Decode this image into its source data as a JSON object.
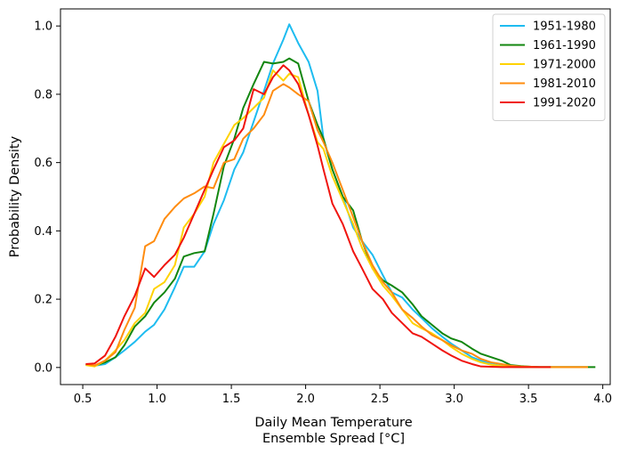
{
  "chart_data": {
    "type": "line",
    "title": "",
    "xlabel": [
      "Daily Mean Temperature",
      "Ensemble Spread [°C]"
    ],
    "ylabel": "Probability Density",
    "xlim": [
      0.35,
      4.05
    ],
    "ylim": [
      -0.05,
      1.05
    ],
    "xticks": [
      0.5,
      1.0,
      1.5,
      2.0,
      2.5,
      3.0,
      3.5,
      4.0
    ],
    "xtick_labels": [
      "0.5",
      "1.0",
      "1.5",
      "2.0",
      "2.5",
      "3.0",
      "3.5",
      "4.0"
    ],
    "yticks": [
      0.0,
      0.2,
      0.4,
      0.6,
      0.8,
      1.0
    ],
    "ytick_labels": [
      "0.0",
      "0.2",
      "0.4",
      "0.6",
      "0.8",
      "1.0"
    ],
    "grid": false,
    "legend_position": "top-right",
    "series": [
      {
        "name": "1951-1980",
        "color": "#1ebcf0",
        "x": [
          0.52,
          0.58,
          0.65,
          0.72,
          0.78,
          0.85,
          0.92,
          0.98,
          1.05,
          1.12,
          1.18,
          1.25,
          1.32,
          1.38,
          1.45,
          1.52,
          1.58,
          1.65,
          1.72,
          1.78,
          1.85,
          1.89,
          1.95,
          2.02,
          2.08,
          2.12,
          2.18,
          2.25,
          2.32,
          2.38,
          2.45,
          2.52,
          2.58,
          2.65,
          2.72,
          2.78,
          2.85,
          2.92,
          2.98,
          3.05,
          3.12,
          3.18,
          3.25,
          3.32,
          3.38,
          3.45,
          3.52,
          3.58,
          3.65,
          3.72,
          3.78,
          3.85,
          3.9
        ],
        "values": [
          0.01,
          0.005,
          0.01,
          0.03,
          0.05,
          0.075,
          0.105,
          0.125,
          0.17,
          0.235,
          0.295,
          0.295,
          0.34,
          0.42,
          0.49,
          0.58,
          0.63,
          0.72,
          0.81,
          0.89,
          0.96,
          1.005,
          0.95,
          0.895,
          0.81,
          0.67,
          0.58,
          0.5,
          0.41,
          0.37,
          0.33,
          0.27,
          0.22,
          0.205,
          0.17,
          0.145,
          0.115,
          0.09,
          0.07,
          0.05,
          0.03,
          0.02,
          0.01,
          0.005,
          0.002,
          0.001,
          0.001,
          0.001,
          0.001,
          0.001,
          0.001,
          0.001,
          0.001
        ]
      },
      {
        "name": "1961-1990",
        "color": "#12860f",
        "x": [
          0.52,
          0.58,
          0.65,
          0.72,
          0.78,
          0.85,
          0.92,
          0.98,
          1.05,
          1.12,
          1.18,
          1.25,
          1.32,
          1.38,
          1.45,
          1.52,
          1.58,
          1.65,
          1.72,
          1.78,
          1.85,
          1.89,
          1.95,
          2.02,
          2.08,
          2.12,
          2.18,
          2.25,
          2.32,
          2.38,
          2.45,
          2.52,
          2.58,
          2.65,
          2.72,
          2.78,
          2.85,
          2.92,
          2.98,
          3.05,
          3.12,
          3.18,
          3.25,
          3.32,
          3.38,
          3.45,
          3.52,
          3.58,
          3.65,
          3.72,
          3.78,
          3.85,
          3.95
        ],
        "values": [
          0.008,
          0.005,
          0.015,
          0.03,
          0.065,
          0.12,
          0.15,
          0.19,
          0.22,
          0.26,
          0.325,
          0.335,
          0.34,
          0.45,
          0.59,
          0.67,
          0.76,
          0.83,
          0.895,
          0.89,
          0.895,
          0.905,
          0.89,
          0.78,
          0.71,
          0.67,
          0.58,
          0.5,
          0.46,
          0.37,
          0.29,
          0.255,
          0.24,
          0.22,
          0.185,
          0.15,
          0.125,
          0.1,
          0.085,
          0.075,
          0.055,
          0.04,
          0.03,
          0.02,
          0.007,
          0.004,
          0.002,
          0.001,
          0.001,
          0.001,
          0.001,
          0.001,
          0.001
        ]
      },
      {
        "name": "1971-2000",
        "color": "#ffd200",
        "x": [
          0.52,
          0.58,
          0.65,
          0.72,
          0.78,
          0.85,
          0.92,
          0.98,
          1.05,
          1.12,
          1.18,
          1.25,
          1.32,
          1.38,
          1.45,
          1.52,
          1.58,
          1.65,
          1.72,
          1.78,
          1.85,
          1.89,
          1.95,
          2.02,
          2.08,
          2.12,
          2.18,
          2.25,
          2.32,
          2.38,
          2.45,
          2.52,
          2.58,
          2.65,
          2.72,
          2.78,
          2.85,
          2.92,
          2.98,
          3.05,
          3.12,
          3.18,
          3.25,
          3.32,
          3.38,
          3.45,
          3.52,
          3.58,
          3.65,
          3.72,
          3.78,
          3.85,
          3.9
        ],
        "values": [
          0.007,
          0.003,
          0.02,
          0.05,
          0.08,
          0.13,
          0.16,
          0.23,
          0.25,
          0.3,
          0.41,
          0.45,
          0.5,
          0.6,
          0.655,
          0.71,
          0.73,
          0.76,
          0.79,
          0.87,
          0.84,
          0.86,
          0.85,
          0.74,
          0.66,
          0.64,
          0.56,
          0.49,
          0.42,
          0.35,
          0.29,
          0.24,
          0.21,
          0.17,
          0.13,
          0.115,
          0.1,
          0.08,
          0.06,
          0.04,
          0.025,
          0.015,
          0.008,
          0.004,
          0.002,
          0.001,
          0.001,
          0.001,
          0.001,
          0.001,
          0.001,
          0.001,
          0.001
        ]
      },
      {
        "name": "1981-2010",
        "color": "#ff8c0f",
        "x": [
          0.52,
          0.58,
          0.65,
          0.72,
          0.78,
          0.85,
          0.92,
          0.98,
          1.05,
          1.12,
          1.18,
          1.25,
          1.32,
          1.38,
          1.45,
          1.52,
          1.58,
          1.65,
          1.72,
          1.78,
          1.85,
          1.89,
          1.95,
          2.02,
          2.08,
          2.12,
          2.18,
          2.25,
          2.32,
          2.38,
          2.45,
          2.52,
          2.58,
          2.65,
          2.72,
          2.78,
          2.85,
          2.92,
          2.98,
          3.05,
          3.12,
          3.18,
          3.25,
          3.32,
          3.38,
          3.45,
          3.52,
          3.58,
          3.65,
          3.72,
          3.78,
          3.85,
          3.9
        ],
        "values": [
          0.01,
          0.006,
          0.02,
          0.045,
          0.11,
          0.175,
          0.355,
          0.37,
          0.435,
          0.47,
          0.495,
          0.51,
          0.53,
          0.525,
          0.6,
          0.61,
          0.67,
          0.7,
          0.74,
          0.81,
          0.83,
          0.82,
          0.8,
          0.78,
          0.695,
          0.66,
          0.6,
          0.52,
          0.44,
          0.37,
          0.3,
          0.25,
          0.22,
          0.17,
          0.145,
          0.12,
          0.095,
          0.08,
          0.065,
          0.05,
          0.04,
          0.025,
          0.015,
          0.01,
          0.005,
          0.003,
          0.002,
          0.001,
          0.001,
          0.001,
          0.001,
          0.001,
          0.001
        ]
      },
      {
        "name": "1991-2020",
        "color": "#f0140f",
        "x": [
          0.52,
          0.58,
          0.65,
          0.72,
          0.78,
          0.85,
          0.92,
          0.98,
          1.05,
          1.12,
          1.18,
          1.25,
          1.32,
          1.38,
          1.45,
          1.52,
          1.58,
          1.65,
          1.72,
          1.78,
          1.85,
          1.89,
          1.95,
          2.02,
          2.08,
          2.12,
          2.18,
          2.25,
          2.32,
          2.38,
          2.45,
          2.52,
          2.58,
          2.65,
          2.72,
          2.78,
          2.85,
          2.92,
          2.98,
          3.05,
          3.12,
          3.18,
          3.25,
          3.32,
          3.38,
          3.45,
          3.52,
          3.58,
          3.65
        ],
        "values": [
          0.01,
          0.012,
          0.035,
          0.09,
          0.15,
          0.21,
          0.29,
          0.265,
          0.3,
          0.33,
          0.38,
          0.45,
          0.52,
          0.58,
          0.645,
          0.665,
          0.7,
          0.815,
          0.8,
          0.85,
          0.885,
          0.87,
          0.83,
          0.74,
          0.65,
          0.58,
          0.48,
          0.42,
          0.34,
          0.29,
          0.23,
          0.2,
          0.16,
          0.13,
          0.1,
          0.09,
          0.07,
          0.05,
          0.035,
          0.02,
          0.01,
          0.003,
          0.002,
          0.001,
          0.001,
          0.001,
          0.001,
          0.001,
          0.001
        ]
      }
    ]
  }
}
